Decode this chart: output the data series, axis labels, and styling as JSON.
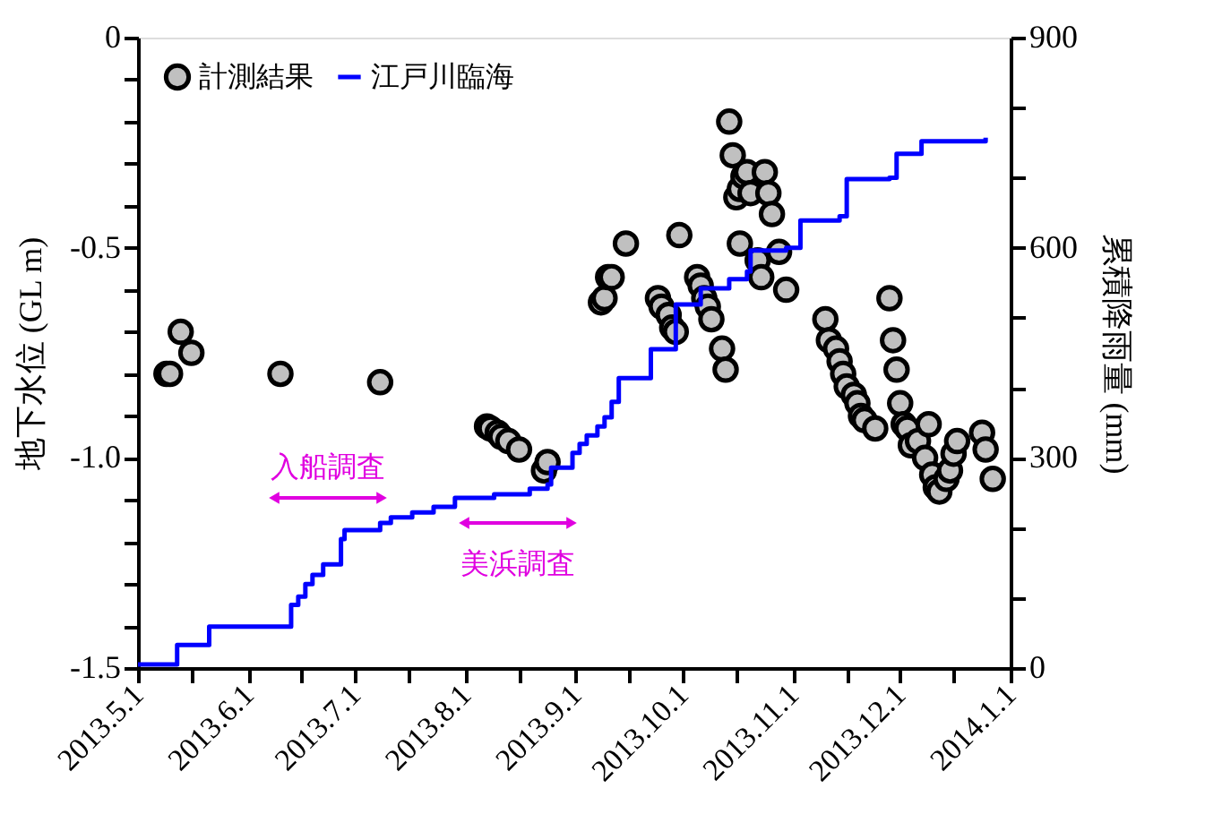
{
  "chart_data": {
    "type": "scatter",
    "xlabel": null,
    "ylabel": "地下水位 (GL m)",
    "y2label": "累積降雨量 (mm)",
    "xlim": [
      "2013-05-01",
      "2014-01-01"
    ],
    "xticks": [
      {
        "value": "2013-05-01",
        "label": "2013.5.1"
      },
      {
        "value": "2013-05-16",
        "label": null
      },
      {
        "value": "2013-06-01",
        "label": "2013.6.1"
      },
      {
        "value": "2013-06-16",
        "label": null
      },
      {
        "value": "2013-07-01",
        "label": "2013.7.1"
      },
      {
        "value": "2013-07-16",
        "label": null
      },
      {
        "value": "2013-08-01",
        "label": "2013.8.1"
      },
      {
        "value": "2013-08-16",
        "label": null
      },
      {
        "value": "2013-09-01",
        "label": "2013.9.1"
      },
      {
        "value": "2013-09-16",
        "label": null
      },
      {
        "value": "2013-10-01",
        "label": "2013.10.1"
      },
      {
        "value": "2013-10-16",
        "label": null
      },
      {
        "value": "2013-11-01",
        "label": "2013.11.1"
      },
      {
        "value": "2013-11-16",
        "label": null
      },
      {
        "value": "2013-12-01",
        "label": "2013.12.1"
      },
      {
        "value": "2013-12-16",
        "label": null
      },
      {
        "value": "2014-01-01",
        "label": "2014.1.1"
      }
    ],
    "ylim": [
      -1.5,
      0
    ],
    "yticks": [
      0,
      {
        "value": -0.1,
        "label": null
      },
      {
        "value": -0.2,
        "label": null
      },
      {
        "value": -0.3,
        "label": null
      },
      {
        "value": -0.4,
        "label": null
      },
      -0.5,
      {
        "value": -0.6,
        "label": null
      },
      {
        "value": -0.7,
        "label": null
      },
      {
        "value": -0.8,
        "label": null
      },
      {
        "value": -0.9,
        "label": null
      },
      {
        "value": -1,
        "label": "-1.0"
      },
      {
        "value": -1.1,
        "label": null
      },
      {
        "value": -1.2,
        "label": null
      },
      {
        "value": -1.3,
        "label": null
      },
      {
        "value": -1.4,
        "label": null
      },
      -1.5
    ],
    "y2lim": [
      0,
      900
    ],
    "y2ticks": [
      0,
      {
        "value": 100,
        "label": null
      },
      {
        "value": 200,
        "label": null
      },
      300,
      {
        "value": 400,
        "label": null
      },
      {
        "value": 500,
        "label": null
      },
      600,
      {
        "value": 700,
        "label": null
      },
      {
        "value": 800,
        "label": null
      },
      900
    ],
    "grid": false,
    "legend": "top left",
    "series": [
      {
        "name": "計測結果",
        "marker": "circle",
        "color": "#c0c0c0",
        "x": [
          "2013-05-09",
          "2013-05-10",
          "2013-05-13",
          "2013-05-16",
          "2013-06-10",
          "2013-07-08",
          "2013-08-07",
          "2013-08-08",
          "2013-08-10",
          "2013-08-11",
          "2013-08-13",
          "2013-08-16",
          "2013-08-23",
          "2013-08-24",
          "2013-09-08",
          "2013-09-09",
          "2013-09-10",
          "2013-09-11",
          "2013-09-15",
          "2013-09-24",
          "2013-09-25",
          "2013-09-27",
          "2013-09-28",
          "2013-09-29",
          "2013-09-30",
          "2013-10-05",
          "2013-10-06",
          "2013-10-07",
          "2013-10-08",
          "2013-10-09",
          "2013-10-12",
          "2013-10-13",
          "2013-10-14",
          "2013-10-15",
          "2013-10-16",
          "2013-10-17",
          "2013-10-17",
          "2013-10-18",
          "2013-10-19",
          "2013-10-20",
          "2013-10-22",
          "2013-10-23",
          "2013-10-24",
          "2013-10-25",
          "2013-10-26",
          "2013-10-28",
          "2013-10-30",
          "2013-11-10",
          "2013-11-11",
          "2013-11-13",
          "2013-11-14",
          "2013-11-15",
          "2013-11-16",
          "2013-11-18",
          "2013-11-19",
          "2013-11-20",
          "2013-11-21",
          "2013-11-24",
          "2013-11-28",
          "2013-11-29",
          "2013-11-30",
          "2013-12-01",
          "2013-12-02",
          "2013-12-03",
          "2013-12-04",
          "2013-12-06",
          "2013-12-08",
          "2013-12-09",
          "2013-12-10",
          "2013-12-11",
          "2013-12-12",
          "2013-12-14",
          "2013-12-15",
          "2013-12-16",
          "2013-12-17",
          "2013-12-24",
          "2013-12-25",
          "2013-12-27"
        ],
        "values": [
          -0.8,
          -0.8,
          -0.7,
          -0.75,
          -0.8,
          -0.82,
          -0.925,
          -0.93,
          -0.94,
          -0.95,
          -0.96,
          -0.98,
          -1.03,
          -1.01,
          -0.63,
          -0.62,
          -0.57,
          -0.57,
          -0.49,
          -0.62,
          -0.64,
          -0.66,
          -0.69,
          -0.7,
          -0.47,
          -0.57,
          -0.59,
          -0.62,
          -0.64,
          -0.67,
          -0.74,
          -0.79,
          -0.2,
          -0.28,
          -0.38,
          -0.36,
          -0.49,
          -0.33,
          -0.32,
          -0.37,
          -0.53,
          -0.57,
          -0.32,
          -0.37,
          -0.42,
          -0.51,
          -0.6,
          -0.67,
          -0.72,
          -0.74,
          -0.77,
          -0.8,
          -0.83,
          -0.85,
          -0.87,
          -0.9,
          -0.91,
          -0.93,
          -0.62,
          -0.72,
          -0.79,
          -0.87,
          -0.92,
          -0.93,
          -0.97,
          -0.96,
          -1.0,
          -0.92,
          -1.04,
          -1.07,
          -1.08,
          -1.05,
          -1.03,
          -0.99,
          -0.96,
          -0.94,
          -0.98,
          -1.05
        ]
      },
      {
        "name": "江戸川臨海",
        "type": "step",
        "axis": "y2",
        "color": "#0000ff",
        "line_style": "solid",
        "marker": "none",
        "x": [
          "2013-05-01",
          "2013-05-11",
          "2013-05-12",
          "2013-05-20",
          "2013-05-21",
          "2013-06-11",
          "2013-06-13",
          "2013-06-15",
          "2013-06-17",
          "2013-06-19",
          "2013-06-22",
          "2013-06-26",
          "2013-06-27",
          "2013-06-28",
          "2013-07-07",
          "2013-07-08",
          "2013-07-11",
          "2013-07-17",
          "2013-07-23",
          "2013-07-29",
          "2013-08-09",
          "2013-08-19",
          "2013-08-24",
          "2013-08-25",
          "2013-08-31",
          "2013-09-02",
          "2013-09-04",
          "2013-09-07",
          "2013-09-09",
          "2013-09-11",
          "2013-09-13",
          "2013-09-20",
          "2013-09-22",
          "2013-09-28",
          "2013-09-29",
          "2013-10-06",
          "2013-10-14",
          "2013-10-19",
          "2013-10-20",
          "2013-10-30",
          "2013-11-03",
          "2013-11-14",
          "2013-11-16",
          "2013-11-28",
          "2013-11-30",
          "2013-12-07",
          "2013-12-25"
        ],
        "values": [
          5,
          5,
          33,
          33,
          59,
          59,
          90,
          102,
          120,
          133,
          148,
          148,
          184,
          197,
          197,
          207,
          215,
          222,
          230,
          243,
          248,
          256,
          262,
          286,
          307,
          320,
          332,
          345,
          358,
          380,
          414,
          414,
          455,
          455,
          519,
          542,
          555,
          566,
          596,
          600,
          639,
          645,
          698,
          700,
          734,
          752,
          757
        ]
      }
    ],
    "annotations": [
      "入船調査",
      "美浜調査"
    ]
  }
}
